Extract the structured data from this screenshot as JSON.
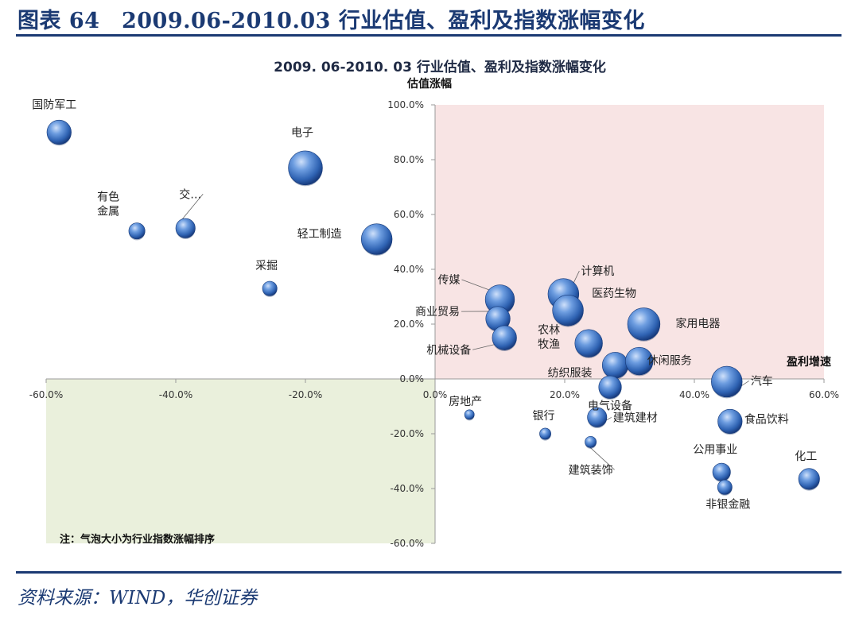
{
  "figure_caption": "图表 64　2009.06-2010.03 行业估值、盈利及指数涨幅变化",
  "source_note": "资料来源：WIND，华创证券",
  "colors": {
    "accent": "#1b3a73",
    "q1": "#f8e4e4",
    "q3": "#eaf0dc",
    "bubble": "#2f63b3"
  },
  "chart_data": {
    "type": "scatter",
    "title": "2009. 06-2010. 03 行业估值、盈利及指数涨幅变化",
    "xlabel": "盈利增速",
    "ylabel": "估值涨幅",
    "xlim": [
      -0.6,
      0.6
    ],
    "ylim": [
      -0.6,
      1.0
    ],
    "x_ticks": [
      "-60.0%",
      "-40.0%",
      "-20.0%",
      "0.0%",
      "20.0%",
      "40.0%",
      "60.0%"
    ],
    "y_ticks": [
      "100.0%",
      "80.0%",
      "60.0%",
      "40.0%",
      "20.0%",
      "0.0%",
      "-20.0%",
      "-40.0%",
      "-60.0%"
    ],
    "note": "注：气泡大小为行业指数涨幅排序",
    "points": [
      {
        "label": "国防军工",
        "x": -0.58,
        "y": 0.9,
        "size": 6
      },
      {
        "label": "电子",
        "x": -0.2,
        "y": 0.77,
        "size": 9
      },
      {
        "label": "有色\n金属",
        "x": -0.46,
        "y": 0.54,
        "size": 3.5
      },
      {
        "label": "交…",
        "x": -0.385,
        "y": 0.55,
        "size": 4.5
      },
      {
        "label": "轻工制造",
        "x": -0.09,
        "y": 0.51,
        "size": 8
      },
      {
        "label": "采掘",
        "x": -0.255,
        "y": 0.33,
        "size": 3
      },
      {
        "label": "传媒",
        "x": 0.1,
        "y": 0.29,
        "size": 7.5
      },
      {
        "label": "商业贸易",
        "x": 0.097,
        "y": 0.22,
        "size": 6
      },
      {
        "label": "机械设备",
        "x": 0.107,
        "y": 0.15,
        "size": 6
      },
      {
        "label": "计算机",
        "x": 0.198,
        "y": 0.31,
        "size": 8
      },
      {
        "label": "医药生物",
        "x": 0.205,
        "y": 0.25,
        "size": 8
      },
      {
        "label": "家用电器",
        "x": 0.322,
        "y": 0.2,
        "size": 8.5
      },
      {
        "label": "农林\n牧渔",
        "x": 0.237,
        "y": 0.13,
        "size": 7
      },
      {
        "label": "纺织服装",
        "x": 0.278,
        "y": 0.05,
        "size": 6.5
      },
      {
        "label": "休闲服务",
        "x": 0.315,
        "y": 0.065,
        "size": 7
      },
      {
        "label": "电气设备",
        "x": 0.27,
        "y": -0.03,
        "size": 5.5
      },
      {
        "label": "汽车",
        "x": 0.45,
        "y": -0.01,
        "size": 8
      },
      {
        "label": "房地产",
        "x": 0.053,
        "y": -0.13,
        "size": 1.5
      },
      {
        "label": "银行",
        "x": 0.17,
        "y": -0.2,
        "size": 2
      },
      {
        "label": "建筑建材",
        "x": 0.25,
        "y": -0.14,
        "size": 4.5
      },
      {
        "label": "建筑装饰",
        "x": 0.24,
        "y": -0.23,
        "size": 2
      },
      {
        "label": "食品饮料",
        "x": 0.455,
        "y": -0.155,
        "size": 6
      },
      {
        "label": "公用事业",
        "x": 0.442,
        "y": -0.34,
        "size": 4
      },
      {
        "label": "非银金融",
        "x": 0.447,
        "y": -0.395,
        "size": 3
      },
      {
        "label": "化工",
        "x": 0.577,
        "y": -0.365,
        "size": 5
      }
    ]
  }
}
